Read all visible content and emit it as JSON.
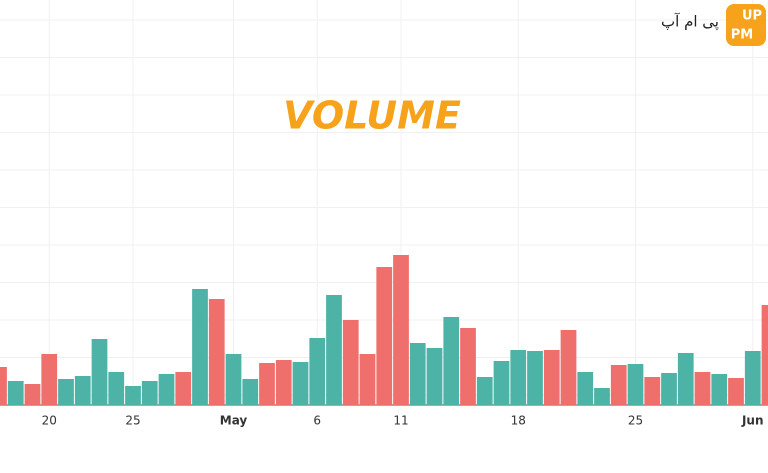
{
  "chart_data": {
    "type": "bar",
    "title": "VOLUME",
    "categories": [
      null,
      null,
      null,
      "20",
      null,
      null,
      null,
      null,
      "25",
      null,
      null,
      null,
      null,
      null,
      "May",
      null,
      null,
      null,
      null,
      "6",
      null,
      null,
      null,
      null,
      "11",
      null,
      null,
      null,
      null,
      null,
      null,
      "18",
      null,
      null,
      null,
      null,
      null,
      null,
      "25",
      null,
      null,
      null,
      null,
      null,
      null,
      "Jun",
      null
    ],
    "values": [
      38,
      24,
      21,
      51,
      26,
      29,
      66,
      33,
      19,
      24,
      31,
      33,
      116,
      106,
      51,
      26,
      42,
      45,
      43,
      67,
      110,
      85,
      51,
      138,
      150,
      62,
      57,
      88,
      77,
      28,
      44,
      55,
      54,
      55,
      75,
      33,
      17,
      40,
      41,
      28,
      32,
      52,
      33,
      31,
      27,
      54,
      100
    ],
    "colors": [
      "#ef6f6c",
      "#4db3a6",
      "#ef6f6c",
      "#ef6f6c",
      "#4db3a6",
      "#4db3a6",
      "#4db3a6",
      "#4db3a6",
      "#4db3a6",
      "#4db3a6",
      "#4db3a6",
      "#ef6f6c",
      "#4db3a6",
      "#ef6f6c",
      "#4db3a6",
      "#4db3a6",
      "#ef6f6c",
      "#ef6f6c",
      "#4db3a6",
      "#4db3a6",
      "#4db3a6",
      "#ef6f6c",
      "#ef6f6c",
      "#ef6f6c",
      "#ef6f6c",
      "#4db3a6",
      "#4db3a6",
      "#4db3a6",
      "#ef6f6c",
      "#4db3a6",
      "#4db3a6",
      "#4db3a6",
      "#4db3a6",
      "#ef6f6c",
      "#ef6f6c",
      "#4db3a6",
      "#4db3a6",
      "#ef6f6c",
      "#4db3a6",
      "#ef6f6c",
      "#4db3a6",
      "#4db3a6",
      "#ef6f6c",
      "#4db3a6",
      "#ef6f6c",
      "#4db3a6",
      "#ef6f6c"
    ]
  },
  "logo": {
    "text": "پی ام آپ",
    "badge": [
      "UP",
      "PM"
    ]
  }
}
